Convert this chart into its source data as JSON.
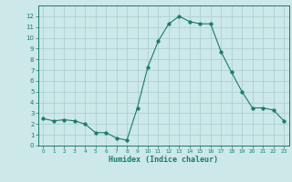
{
  "x": [
    0,
    1,
    2,
    3,
    4,
    5,
    6,
    7,
    8,
    9,
    10,
    11,
    12,
    13,
    14,
    15,
    16,
    17,
    18,
    19,
    20,
    21,
    22,
    23
  ],
  "y": [
    2.5,
    2.3,
    2.4,
    2.3,
    2.0,
    1.2,
    1.2,
    0.7,
    0.5,
    3.5,
    7.3,
    9.7,
    11.3,
    12.0,
    11.5,
    11.3,
    11.3,
    8.7,
    6.8,
    5.0,
    3.5,
    3.5,
    3.3,
    2.3
  ],
  "line_color": "#1a7a6e",
  "bg_color": "#cce8e8",
  "grid_color": "#a8cccc",
  "xlabel": "Humidex (Indice chaleur)",
  "ylim": [
    0,
    13
  ],
  "xlim": [
    -0.5,
    23.5
  ],
  "yticks": [
    0,
    1,
    2,
    3,
    4,
    5,
    6,
    7,
    8,
    9,
    10,
    11,
    12
  ],
  "xticks": [
    0,
    1,
    2,
    3,
    4,
    5,
    6,
    7,
    8,
    9,
    10,
    11,
    12,
    13,
    14,
    15,
    16,
    17,
    18,
    19,
    20,
    21,
    22,
    23
  ],
  "axis_color": "#1a7a6e",
  "tick_color": "#1a7a6e",
  "label_color": "#1a7a6e",
  "marker_size": 2.5,
  "linewidth": 0.8
}
